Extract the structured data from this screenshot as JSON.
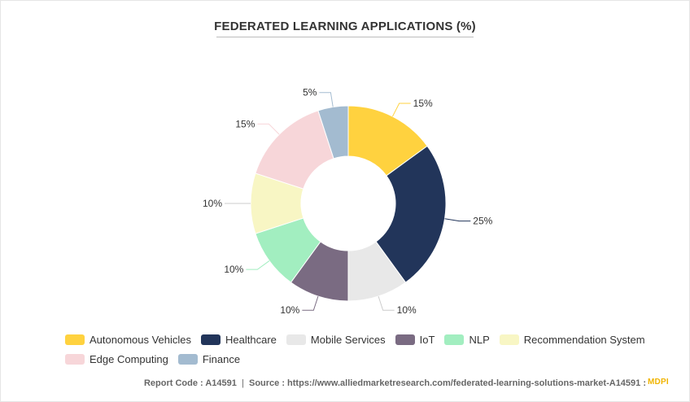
{
  "title": "FEDERATED LEARNING APPLICATIONS (%)",
  "chart_data": {
    "type": "pie",
    "donut": true,
    "categories": [
      "Autonomous Vehicles",
      "Healthcare",
      "Mobile Services",
      "IoT",
      "NLP",
      "Recommendation System",
      "Edge Computing",
      "Finance"
    ],
    "values": [
      15,
      25,
      10,
      10,
      10,
      10,
      15,
      5
    ],
    "labels": [
      "15%",
      "25%",
      "10%",
      "10%",
      "10%",
      "10%",
      "15%",
      "5%"
    ],
    "colors": [
      "#FFD23F",
      "#22355A",
      "#E8E8E8",
      "#7A6B82",
      "#A2EEC0",
      "#F8F6C4",
      "#F7D6D9",
      "#A3BBD0"
    ],
    "legend_position": "bottom"
  },
  "footer": {
    "report_code": "Report Code : A14591",
    "separator": "|",
    "source": "Source : https://www.alliedmarketresearch.com/federated-learning-solutions-market-A14591 :",
    "brand": "MDPI"
  }
}
